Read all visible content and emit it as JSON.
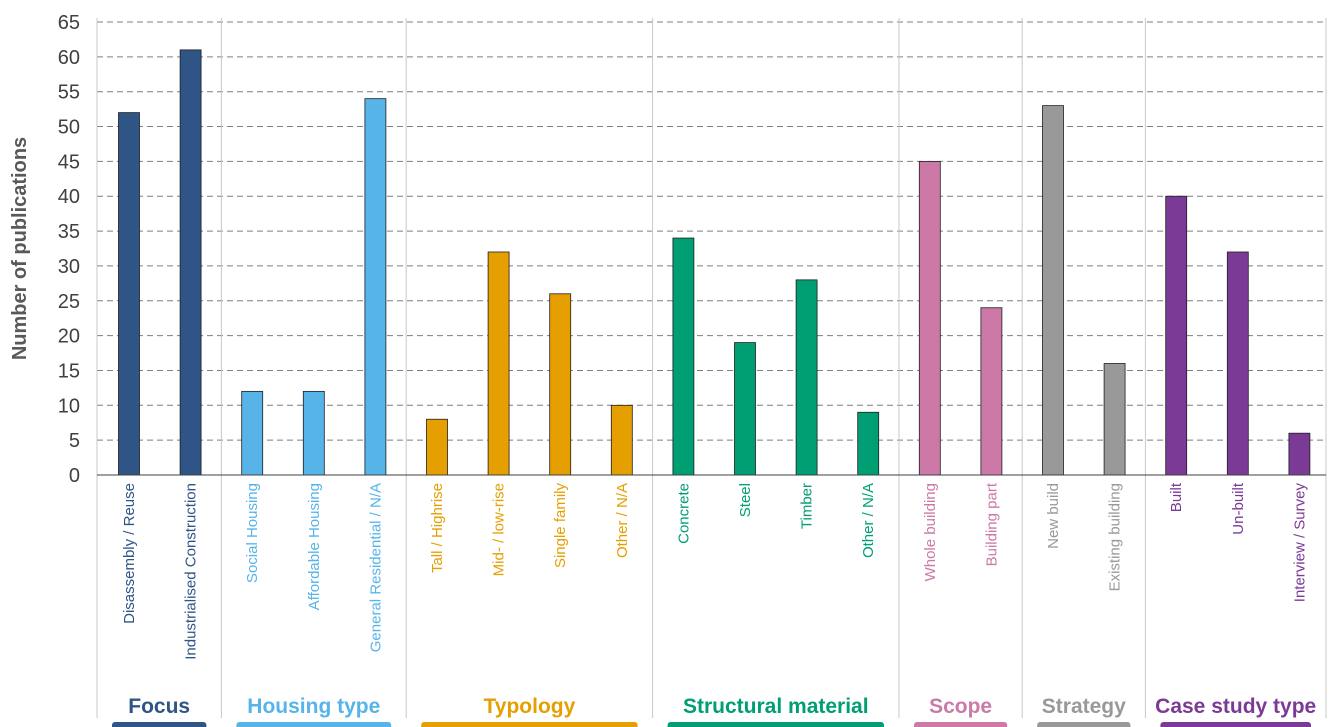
{
  "chart_data": {
    "type": "bar",
    "ylabel": "Number of publications",
    "ylim": [
      0,
      65
    ],
    "yticks": [
      0,
      5,
      10,
      15,
      20,
      25,
      30,
      35,
      40,
      45,
      50,
      55,
      60,
      65
    ],
    "grid": "horizontal dashed",
    "groups": [
      {
        "name": "Focus",
        "color": "#2e5586",
        "categories": [
          "Disassembly / Reuse",
          "Industrialised Construction"
        ],
        "values": [
          52,
          61
        ]
      },
      {
        "name": "Housing type",
        "color": "#56b4e9",
        "categories": [
          "Social Housing",
          "Affordable Housing",
          "General Residential / N/A"
        ],
        "values": [
          12,
          12,
          54
        ]
      },
      {
        "name": "Typology",
        "color": "#e69f00",
        "categories": [
          "Tall / Highrise",
          "Mid- / low-rise",
          "Single family",
          "Other / N/A"
        ],
        "values": [
          8,
          32,
          26,
          10
        ]
      },
      {
        "name": "Structural material",
        "color": "#009e73",
        "categories": [
          "Concrete",
          "Steel",
          "Timber",
          "Other / N/A"
        ],
        "values": [
          34,
          19,
          28,
          9
        ]
      },
      {
        "name": "Scope",
        "color": "#cc79a7",
        "categories": [
          "Whole building",
          "Building part"
        ],
        "values": [
          45,
          24
        ]
      },
      {
        "name": "Strategy",
        "color": "#999999",
        "categories": [
          "New build",
          "Existing building"
        ],
        "values": [
          53,
          16
        ]
      },
      {
        "name": "Case study type",
        "color": "#7b3a96",
        "categories": [
          "Built",
          "Un-built",
          "Interview / Survey"
        ],
        "values": [
          40,
          32,
          6
        ]
      }
    ]
  }
}
